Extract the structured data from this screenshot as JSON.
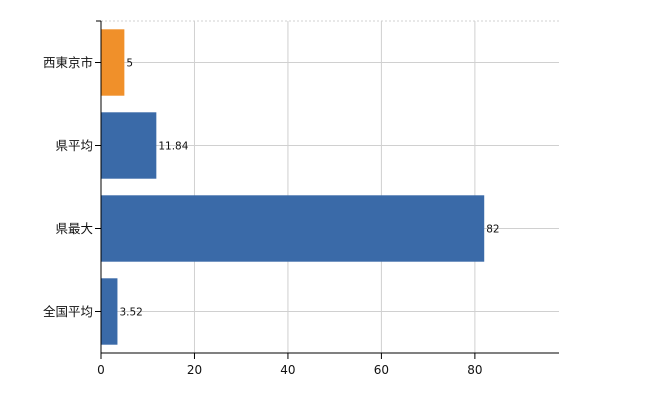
{
  "chart_data": {
    "type": "bar",
    "orientation": "horizontal",
    "categories": [
      "西東京市",
      "県平均",
      "県最大",
      "全国平均"
    ],
    "values": [
      5,
      11.84,
      82,
      3.52
    ],
    "value_labels": [
      "5",
      "11.84",
      "82",
      "3.52"
    ],
    "colors": [
      "#f0902a",
      "#3a6aa8",
      "#3a6aa8",
      "#3a6aa8"
    ],
    "xlim": [
      0,
      98
    ],
    "xticks": [
      0,
      20,
      40,
      60,
      80
    ],
    "xtick_labels": [
      "0",
      "20",
      "40",
      "60",
      "80"
    ],
    "grid": true,
    "title": "",
    "xlabel": "",
    "ylabel": ""
  }
}
